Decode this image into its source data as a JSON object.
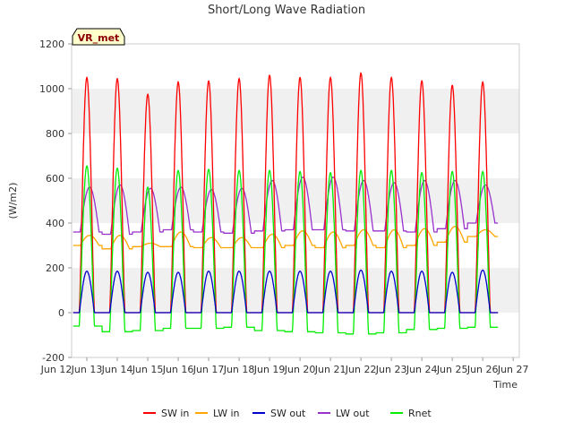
{
  "chart_data": {
    "type": "line",
    "title": "Short/Long Wave Radiation",
    "xlabel": "Time",
    "ylabel": "(W/m2)",
    "badge": "VR_met",
    "xlim": [
      12.0,
      26.7
    ],
    "ylim": [
      -200,
      1200
    ],
    "yticks": [
      -200,
      0,
      200,
      400,
      600,
      800,
      1000,
      1200
    ],
    "xticks": [
      {
        "x": 11.5,
        "label": "Jun 12"
      },
      {
        "x": 12.5,
        "label": "Jun 13"
      },
      {
        "x": 13.5,
        "label": "Jun 14"
      },
      {
        "x": 14.5,
        "label": "Jun 15"
      },
      {
        "x": 15.5,
        "label": "Jun 16"
      },
      {
        "x": 16.5,
        "label": "Jun 17"
      },
      {
        "x": 17.5,
        "label": "Jun 18"
      },
      {
        "x": 18.5,
        "label": "Jun 19"
      },
      {
        "x": 19.5,
        "label": "Jun 20"
      },
      {
        "x": 20.5,
        "label": "Jun 21"
      },
      {
        "x": 21.5,
        "label": "Jun 22"
      },
      {
        "x": 22.5,
        "label": "Jun 23"
      },
      {
        "x": 23.5,
        "label": "Jun 24"
      },
      {
        "x": 24.5,
        "label": "Jun 25"
      },
      {
        "x": 25.5,
        "label": "Jun 26"
      },
      {
        "x": 26.5,
        "label": "Jun 27"
      }
    ],
    "grid": "horizontal-bands",
    "legend_position": "bottom",
    "days": [
      12,
      13,
      14,
      15,
      16,
      17,
      18,
      19,
      20,
      21,
      22,
      23,
      24,
      25
    ],
    "series": [
      {
        "name": "SW in",
        "color": "#ff0000",
        "daily_peak": [
          1050,
          1045,
          975,
          1030,
          1035,
          1045,
          1060,
          1050,
          1050,
          1070,
          1050,
          1035,
          1015,
          1030
        ],
        "night": 0
      },
      {
        "name": "LW in",
        "color": "#ffa500",
        "daily_max": [
          345,
          345,
          310,
          360,
          335,
          335,
          350,
          365,
          360,
          370,
          370,
          375,
          385,
          370
        ],
        "daily_min": [
          300,
          285,
          295,
          295,
          290,
          290,
          290,
          300,
          290,
          300,
          290,
          300,
          315,
          340
        ]
      },
      {
        "name": "SW out",
        "color": "#0000cc",
        "daily_peak": [
          185,
          185,
          180,
          180,
          185,
          185,
          185,
          185,
          185,
          190,
          185,
          185,
          180,
          190
        ],
        "night": 0
      },
      {
        "name": "LW out",
        "color": "#9932cc",
        "daily_max": [
          560,
          570,
          555,
          560,
          550,
          555,
          590,
          605,
          605,
          590,
          580,
          590,
          590,
          570
        ],
        "daily_min": [
          360,
          350,
          360,
          370,
          360,
          355,
          365,
          370,
          370,
          365,
          365,
          360,
          375,
          400
        ]
      },
      {
        "name": "Rnet",
        "color": "#00ee00",
        "daily_peak": [
          655,
          645,
          560,
          635,
          640,
          635,
          635,
          630,
          625,
          635,
          635,
          625,
          630,
          630
        ],
        "night": [
          -60,
          -85,
          -80,
          -70,
          -70,
          -65,
          -80,
          -85,
          -90,
          -95,
          -90,
          -75,
          -70,
          -65
        ]
      }
    ]
  }
}
